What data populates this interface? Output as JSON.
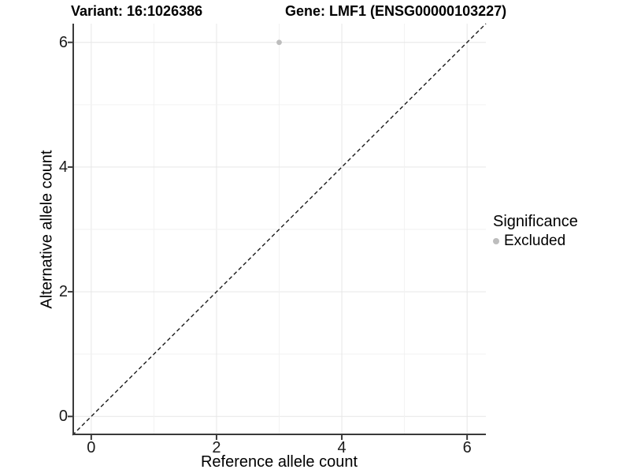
{
  "header": {
    "title_left": "Variant: 16:1026386",
    "title_right": "Gene: LMF1 (ENSG00000103227)"
  },
  "legend": {
    "title": "Significance",
    "items": [
      {
        "label": "Excluded",
        "color": "#bdbdbd"
      }
    ]
  },
  "chart_data": {
    "type": "scatter",
    "title": "Variant: 16:1026386    Gene: LMF1 (ENSG00000103227)",
    "xlabel": "Reference allele count",
    "ylabel": "Alternative allele count",
    "xlim": [
      -0.3,
      6.3
    ],
    "ylim": [
      -0.3,
      6.3
    ],
    "x_ticks": [
      0,
      2,
      4,
      6
    ],
    "y_ticks": [
      0,
      2,
      4,
      6
    ],
    "grid_values": [
      0,
      1,
      2,
      3,
      4,
      5,
      6
    ],
    "grid": true,
    "legend_position": "right",
    "identity_line": {
      "equation": "y = x",
      "style": "dashed",
      "color": "#1a1a1a"
    },
    "series": [
      {
        "name": "Excluded",
        "color": "#bdbdbd",
        "points": [
          {
            "x": 3,
            "y": 6
          }
        ]
      }
    ],
    "colors": {
      "grid_major": "#e6e6e6",
      "grid_minor": "#f2f2f2",
      "axis_line": "#3a3a3a",
      "tick_mark": "#3a3a3a",
      "point": "#bdbdbd",
      "background": "#ffffff"
    }
  }
}
